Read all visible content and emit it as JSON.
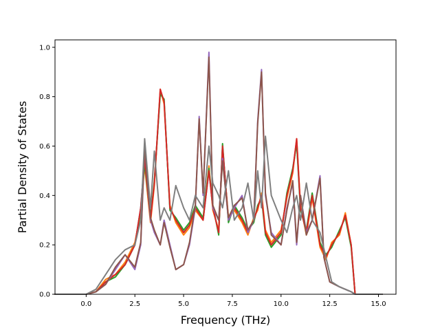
{
  "chart_data": {
    "type": "line",
    "title": "",
    "xlabel": "Frequency (THz)",
    "ylabel": "Partial Density of States",
    "xlim": [
      -1.6,
      15.9
    ],
    "ylim": [
      0,
      1.03
    ],
    "xticks": [
      0.0,
      2.5,
      5.0,
      7.5,
      10.0,
      12.5,
      15.0
    ],
    "xtick_labels": [
      "0.0",
      "2.5",
      "5.0",
      "7.5",
      "10.0",
      "12.5",
      "15.0"
    ],
    "yticks": [
      0.0,
      0.2,
      0.4,
      0.6,
      0.8,
      1.0
    ],
    "ytick_labels": [
      "0.0",
      "0.2",
      "0.4",
      "0.6",
      "0.8",
      "1.0"
    ],
    "grid": false,
    "legend": "none",
    "series": [
      {
        "color": "#1f77b4",
        "x": [
          -1.6,
          0.0,
          0.5,
          1.0,
          1.5,
          2.0,
          2.5,
          2.8,
          3.0,
          3.3,
          3.5,
          3.8,
          4.0,
          4.3,
          4.6,
          5.0,
          5.3,
          5.6,
          6.0,
          6.3,
          6.5,
          6.8,
          7.0,
          7.3,
          7.6,
          8.0,
          8.3,
          8.6,
          8.8,
          9.0,
          9.2,
          9.5,
          10.0,
          10.3,
          10.6,
          10.8,
          11.0,
          11.3,
          11.6,
          12.0,
          12.3,
          12.6,
          13.0,
          13.3,
          13.6,
          13.8,
          15.2
        ],
        "y": [
          0,
          0,
          0.01,
          0.05,
          0.08,
          0.12,
          0.2,
          0.35,
          0.55,
          0.3,
          0.45,
          0.82,
          0.78,
          0.35,
          0.3,
          0.25,
          0.28,
          0.35,
          0.3,
          0.5,
          0.35,
          0.25,
          0.6,
          0.3,
          0.35,
          0.3,
          0.25,
          0.3,
          0.35,
          0.4,
          0.25,
          0.2,
          0.25,
          0.4,
          0.5,
          0.62,
          0.35,
          0.25,
          0.4,
          0.2,
          0.15,
          0.2,
          0.25,
          0.32,
          0.2,
          0.0,
          0
        ]
      },
      {
        "color": "#ff7f0e",
        "x": [
          -1.6,
          0.0,
          0.5,
          1.0,
          1.5,
          2.0,
          2.5,
          2.8,
          3.0,
          3.3,
          3.5,
          3.8,
          4.0,
          4.3,
          4.6,
          5.0,
          5.3,
          5.6,
          6.0,
          6.3,
          6.5,
          6.8,
          7.0,
          7.3,
          7.6,
          8.0,
          8.3,
          8.6,
          8.8,
          9.0,
          9.2,
          9.5,
          10.0,
          10.3,
          10.6,
          10.8,
          11.0,
          11.3,
          11.6,
          12.0,
          12.3,
          12.6,
          13.0,
          13.3,
          13.6,
          13.8,
          15.2
        ],
        "y": [
          0,
          0,
          0.01,
          0.06,
          0.08,
          0.13,
          0.21,
          0.33,
          0.52,
          0.29,
          0.44,
          0.83,
          0.77,
          0.36,
          0.29,
          0.24,
          0.27,
          0.34,
          0.3,
          0.52,
          0.34,
          0.26,
          0.59,
          0.31,
          0.34,
          0.29,
          0.24,
          0.31,
          0.34,
          0.41,
          0.26,
          0.21,
          0.26,
          0.39,
          0.49,
          0.63,
          0.36,
          0.24,
          0.39,
          0.19,
          0.14,
          0.21,
          0.24,
          0.33,
          0.2,
          0.0,
          0
        ]
      },
      {
        "color": "#2ca02c",
        "x": [
          -1.6,
          0.0,
          0.5,
          1.0,
          1.5,
          2.0,
          2.5,
          2.8,
          3.0,
          3.3,
          3.5,
          3.8,
          4.0,
          4.3,
          4.6,
          5.0,
          5.3,
          5.6,
          6.0,
          6.3,
          6.5,
          6.8,
          7.0,
          7.3,
          7.6,
          8.0,
          8.3,
          8.6,
          8.8,
          9.0,
          9.2,
          9.5,
          10.0,
          10.3,
          10.6,
          10.8,
          11.0,
          11.3,
          11.6,
          12.0,
          12.3,
          12.6,
          13.0,
          13.3,
          13.6,
          13.8,
          15.2
        ],
        "y": [
          0,
          0,
          0.01,
          0.05,
          0.07,
          0.12,
          0.2,
          0.34,
          0.53,
          0.31,
          0.46,
          0.81,
          0.79,
          0.34,
          0.31,
          0.26,
          0.29,
          0.36,
          0.31,
          0.51,
          0.36,
          0.24,
          0.61,
          0.29,
          0.36,
          0.31,
          0.26,
          0.29,
          0.36,
          0.39,
          0.24,
          0.19,
          0.24,
          0.41,
          0.51,
          0.61,
          0.34,
          0.26,
          0.41,
          0.21,
          0.16,
          0.19,
          0.26,
          0.31,
          0.19,
          0.0,
          0
        ]
      },
      {
        "color": "#d62728",
        "x": [
          -1.6,
          0.0,
          0.5,
          1.0,
          1.5,
          2.0,
          2.5,
          2.8,
          3.0,
          3.3,
          3.5,
          3.8,
          4.0,
          4.3,
          4.6,
          5.0,
          5.3,
          5.6,
          6.0,
          6.3,
          6.5,
          6.8,
          7.0,
          7.3,
          7.6,
          8.0,
          8.3,
          8.6,
          8.8,
          9.0,
          9.2,
          9.5,
          10.0,
          10.3,
          10.6,
          10.8,
          11.0,
          11.3,
          11.6,
          12.0,
          12.3,
          12.6,
          13.0,
          13.3,
          13.6,
          13.8,
          15.2
        ],
        "y": [
          0,
          0,
          0.01,
          0.05,
          0.08,
          0.12,
          0.2,
          0.35,
          0.55,
          0.3,
          0.45,
          0.83,
          0.78,
          0.35,
          0.3,
          0.25,
          0.28,
          0.35,
          0.3,
          0.5,
          0.35,
          0.25,
          0.6,
          0.3,
          0.35,
          0.3,
          0.25,
          0.3,
          0.35,
          0.4,
          0.25,
          0.2,
          0.25,
          0.4,
          0.5,
          0.63,
          0.35,
          0.25,
          0.4,
          0.2,
          0.15,
          0.2,
          0.25,
          0.32,
          0.2,
          0.0,
          0
        ]
      },
      {
        "color": "#9467bd",
        "x": [
          -1.6,
          0.0,
          0.5,
          1.0,
          1.5,
          2.0,
          2.5,
          2.8,
          3.0,
          3.3,
          3.5,
          3.8,
          4.0,
          4.3,
          4.6,
          5.0,
          5.3,
          5.6,
          5.8,
          6.0,
          6.3,
          6.5,
          6.8,
          7.0,
          7.3,
          7.6,
          8.0,
          8.3,
          8.6,
          8.8,
          9.0,
          9.2,
          9.5,
          10.0,
          10.3,
          10.6,
          10.8,
          11.0,
          11.3,
          11.6,
          12.0,
          12.2,
          12.5,
          13.0,
          13.3,
          13.6,
          13.8,
          15.2
        ],
        "y": [
          0,
          0,
          0.01,
          0.04,
          0.1,
          0.16,
          0.1,
          0.2,
          0.6,
          0.3,
          0.25,
          0.2,
          0.3,
          0.2,
          0.1,
          0.12,
          0.2,
          0.35,
          0.72,
          0.4,
          0.98,
          0.35,
          0.3,
          0.55,
          0.3,
          0.35,
          0.4,
          0.25,
          0.3,
          0.7,
          0.91,
          0.4,
          0.25,
          0.2,
          0.35,
          0.45,
          0.2,
          0.4,
          0.25,
          0.3,
          0.48,
          0.15,
          0.05,
          0.03,
          0.02,
          0.01,
          0.0,
          0
        ]
      },
      {
        "color": "#8c564b",
        "x": [
          -1.6,
          0.0,
          0.5,
          1.0,
          1.5,
          2.0,
          2.5,
          2.8,
          3.0,
          3.3,
          3.5,
          3.8,
          4.0,
          4.3,
          4.6,
          5.0,
          5.3,
          5.6,
          5.8,
          6.0,
          6.3,
          6.5,
          6.8,
          7.0,
          7.3,
          7.6,
          8.0,
          8.3,
          8.6,
          8.8,
          9.0,
          9.2,
          9.5,
          10.0,
          10.3,
          10.6,
          10.8,
          11.0,
          11.3,
          11.6,
          12.0,
          12.2,
          12.5,
          13.0,
          13.3,
          13.6,
          13.8,
          15.2
        ],
        "y": [
          0,
          0,
          0.01,
          0.04,
          0.11,
          0.16,
          0.11,
          0.21,
          0.6,
          0.31,
          0.26,
          0.2,
          0.29,
          0.19,
          0.1,
          0.12,
          0.21,
          0.36,
          0.71,
          0.41,
          0.96,
          0.36,
          0.3,
          0.54,
          0.31,
          0.36,
          0.39,
          0.26,
          0.3,
          0.69,
          0.9,
          0.41,
          0.24,
          0.2,
          0.34,
          0.46,
          0.21,
          0.4,
          0.24,
          0.3,
          0.47,
          0.15,
          0.05,
          0.03,
          0.02,
          0.01,
          0.0,
          0
        ]
      },
      {
        "color": "#7f7f7f",
        "x": [
          -1.6,
          0.0,
          0.5,
          1.0,
          1.5,
          2.0,
          2.5,
          2.8,
          3.0,
          3.3,
          3.5,
          3.8,
          4.0,
          4.3,
          4.6,
          5.0,
          5.3,
          5.6,
          6.0,
          6.3,
          6.5,
          6.8,
          7.0,
          7.3,
          7.6,
          8.0,
          8.3,
          8.6,
          8.8,
          9.0,
          9.2,
          9.5,
          10.0,
          10.3,
          10.6,
          10.8,
          11.0,
          11.3,
          11.6,
          12.0,
          12.3,
          12.6,
          13.0,
          13.3,
          13.6,
          13.8,
          15.2
        ],
        "y": [
          0,
          0,
          0.02,
          0.08,
          0.14,
          0.18,
          0.2,
          0.3,
          0.63,
          0.35,
          0.58,
          0.3,
          0.35,
          0.3,
          0.44,
          0.35,
          0.3,
          0.4,
          0.35,
          0.6,
          0.45,
          0.4,
          0.35,
          0.5,
          0.3,
          0.35,
          0.45,
          0.3,
          0.5,
          0.35,
          0.64,
          0.4,
          0.3,
          0.25,
          0.35,
          0.4,
          0.3,
          0.45,
          0.3,
          0.25,
          0.15,
          0.05,
          0.03,
          0.02,
          0.01,
          0.0,
          0
        ]
      }
    ]
  }
}
